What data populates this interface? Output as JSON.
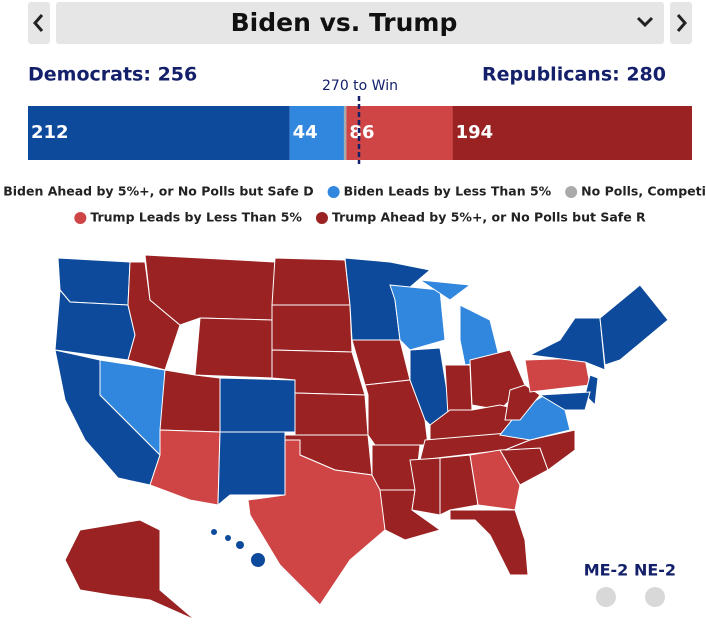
{
  "header": {
    "title": "Biden vs. Trump"
  },
  "totals": {
    "democrats": "Democrats: 256",
    "republicans": "Republicans: 280",
    "threshold": "270 to Win"
  },
  "chart_data": {
    "type": "stacked-bar",
    "series": [
      {
        "name": "Biden Ahead by 5%+, or No Polls but Safe D",
        "color": "#0d4a9b",
        "values": [
          212
        ]
      },
      {
        "name": "Biden Leads by Less Than 5%",
        "color": "#3186dd",
        "values": [
          44
        ]
      },
      {
        "name": "No Polls, Competitive",
        "color": "#aaaaaa",
        "values": [
          2
        ]
      },
      {
        "name": "Trump Leads by Less Than 5%",
        "color": "#cf4444",
        "values": [
          86
        ]
      },
      {
        "name": "Trump Ahead by 5%+, or No Polls but Safe R",
        "color": "#9a2222",
        "values": [
          194
        ]
      }
    ]
  },
  "districts": [
    "ME-2",
    "NE-2"
  ]
}
